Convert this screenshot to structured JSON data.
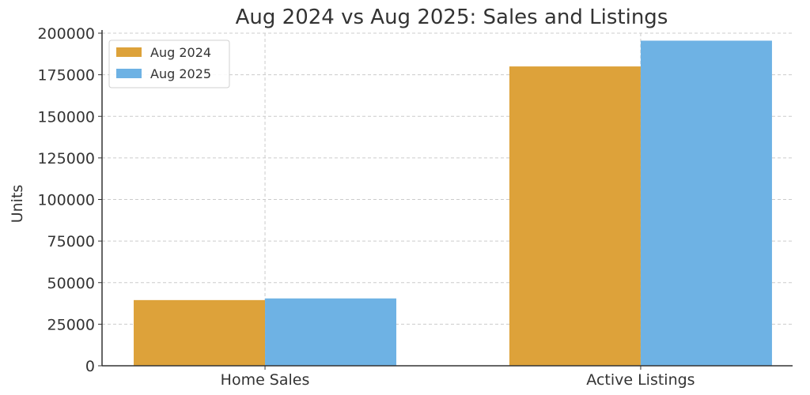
{
  "chart_data": {
    "type": "bar",
    "title": "Aug 2024 vs Aug 2025: Sales and Listings",
    "xlabel": "",
    "ylabel": "Units",
    "categories": [
      "Home Sales",
      "Active Listings"
    ],
    "series": [
      {
        "name": "Aug 2024",
        "color": "#DDA23A",
        "values": [
          39500,
          180000
        ]
      },
      {
        "name": "Aug 2025",
        "color": "#6EB2E4",
        "values": [
          40500,
          195500
        ]
      }
    ],
    "ylim": [
      0,
      200000
    ],
    "yticks": [
      0,
      25000,
      50000,
      75000,
      100000,
      125000,
      150000,
      175000,
      200000
    ],
    "grid": true,
    "legend_position": "top-left"
  }
}
